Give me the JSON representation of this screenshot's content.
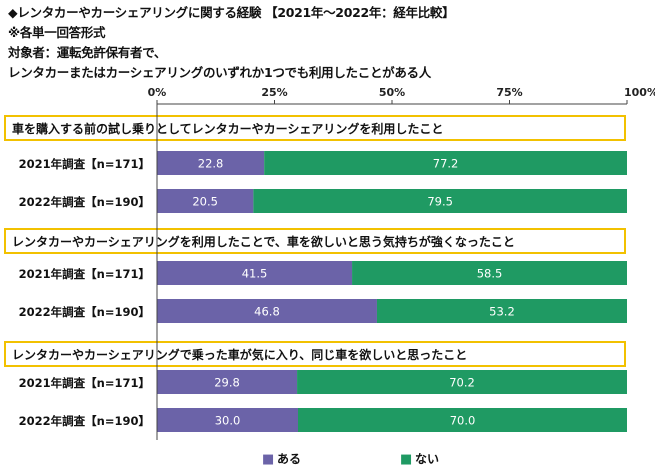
{
  "header": {
    "title": "◆レンタカーやカーシェアリングに関する経験 【2021年～2022年：経年比較】",
    "answer_format": "※各単一回答形式",
    "respondents_line1": "対象者：運転免許保有者で、",
    "respondents_line2": "レンタカーまたはカーシェアリングのいずれか1つでも利用したことがある人"
  },
  "colors": {
    "aru": "#6b63a8",
    "nai": "#1f9a63",
    "question_border": "#f2c100",
    "axis": "#444444"
  },
  "chart_data": {
    "type": "bar",
    "orientation": "horizontal-stacked-100",
    "axis_ticks": [
      "0%",
      "25%",
      "50%",
      "75%",
      "100%"
    ],
    "xlim": [
      0,
      100
    ],
    "legend": [
      {
        "marker": "■",
        "label": "ある"
      },
      {
        "marker": "■",
        "label": "ない"
      }
    ],
    "groups": [
      {
        "question": "車を購入する前の試し乗りとしてレンタカーやカーシェアリングを利用したこと",
        "rows": [
          {
            "label": "2021年調査【n=171】",
            "aru": 22.8,
            "nai": 77.2
          },
          {
            "label": "2022年調査【n=190】",
            "aru": 20.5,
            "nai": 79.5
          }
        ]
      },
      {
        "question": "レンタカーやカーシェアリングを利用したことで、車を欲しいと思う気持ちが強くなったこと",
        "rows": [
          {
            "label": "2021年調査【n=171】",
            "aru": 41.5,
            "nai": 58.5
          },
          {
            "label": "2022年調査【n=190】",
            "aru": 46.8,
            "nai": 53.2
          }
        ]
      },
      {
        "question": "レンタカーやカーシェアリングで乗った車が気に入り、同じ車を欲しいと思ったこと",
        "rows": [
          {
            "label": "2021年調査【n=171】",
            "aru": 29.8,
            "nai": 70.2
          },
          {
            "label": "2022年調査【n=190】",
            "aru": 30.0,
            "nai": 70.0
          }
        ]
      }
    ]
  }
}
